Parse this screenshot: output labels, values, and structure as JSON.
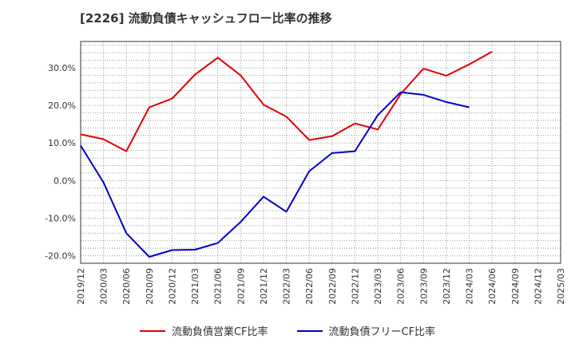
{
  "chart_data": {
    "type": "line",
    "title": "[2226]  流動負債キャッシュフロー比率の推移",
    "x": [
      "2019/12",
      "2020/03",
      "2020/06",
      "2020/09",
      "2020/12",
      "2021/03",
      "2021/06",
      "2021/09",
      "2021/12",
      "2022/03",
      "2022/06",
      "2022/09",
      "2022/12",
      "2023/03",
      "2023/06",
      "2023/09",
      "2023/12",
      "2024/03",
      "2024/06",
      "2024/09",
      "2024/12",
      "2025/03"
    ],
    "ylim": [
      -22,
      37
    ],
    "yticks": [
      -20,
      -10,
      0,
      10,
      20,
      30
    ],
    "ytick_labels": [
      "-20.0%",
      "-10.0%",
      "0.0%",
      "10.0%",
      "20.0%",
      "30.0%"
    ],
    "grid": true,
    "legend_position": "bottom",
    "series": [
      {
        "name": "流動負債営業CF比率",
        "color": "#e00000",
        "values": [
          12.3,
          11.0,
          7.8,
          19.5,
          21.8,
          28.2,
          32.7,
          28.0,
          20.2,
          17.0,
          10.8,
          11.8,
          15.2,
          13.6,
          23.0,
          29.8,
          27.9,
          30.9,
          34.3,
          null,
          null,
          null
        ]
      },
      {
        "name": "流動負債フリーCF比率",
        "color": "#0000cc",
        "values": [
          9.3,
          -0.5,
          -14.0,
          -20.3,
          -18.5,
          -18.4,
          -16.6,
          -11.0,
          -4.3,
          -8.3,
          2.5,
          7.3,
          7.8,
          17.4,
          23.5,
          22.8,
          20.9,
          19.5,
          null,
          null,
          null,
          null
        ]
      }
    ]
  }
}
